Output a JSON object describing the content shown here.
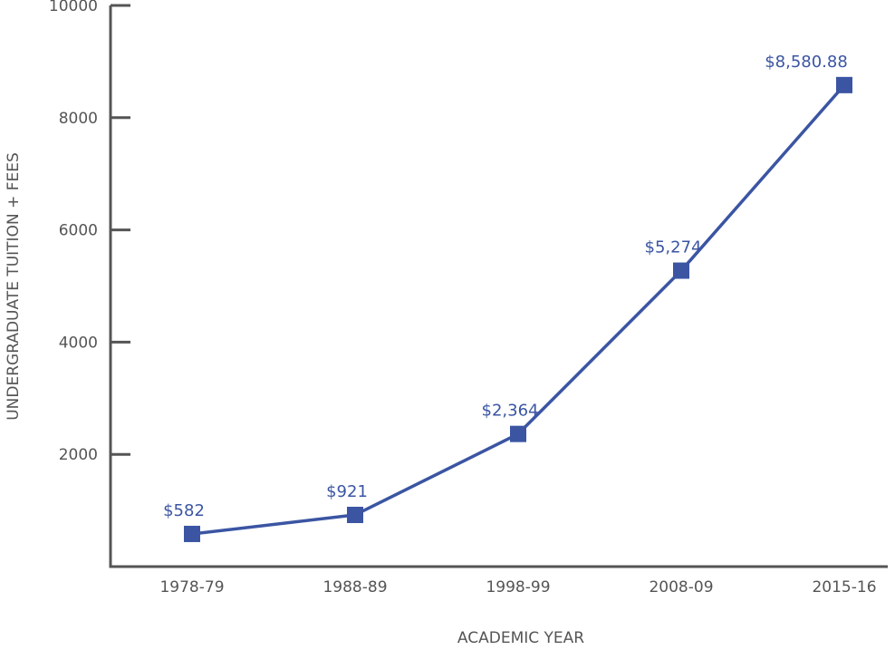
{
  "chart_data": {
    "type": "line",
    "title": "",
    "xlabel": "ACADEMIC YEAR",
    "ylabel": "UNDERGRADUATE TUITION + FEES",
    "categories": [
      "1978-79",
      "1988-89",
      "1998-99",
      "2008-09",
      "2015-16"
    ],
    "series": [
      {
        "values": [
          582,
          921,
          2364,
          5274,
          8580.88
        ],
        "data_labels": [
          "$582",
          "$921",
          "$2,364",
          "$5,274",
          "$8,580.88"
        ]
      }
    ],
    "ylim": [
      0,
      10000
    ],
    "yticks": [
      2000,
      4000,
      6000,
      8000,
      10000
    ],
    "grid": false,
    "legend": "none",
    "colors": {
      "series": "#3b55a3",
      "axis": "#555555",
      "text": "#555555"
    },
    "marker": "square"
  }
}
